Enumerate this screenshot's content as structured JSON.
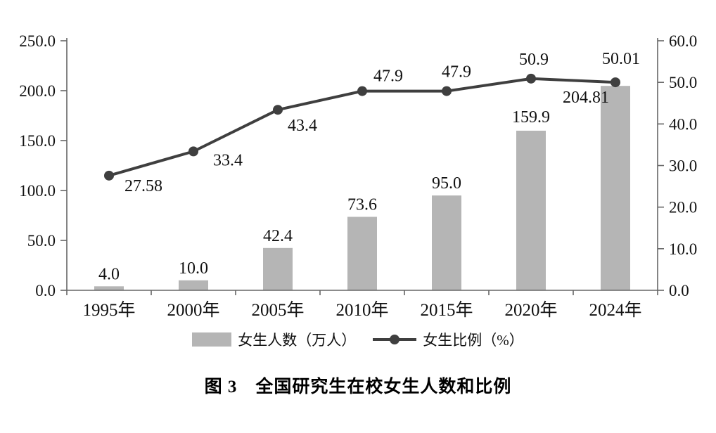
{
  "chart_data": {
    "type": "bar",
    "subtype": "combo-bar-line",
    "categories": [
      "1995年",
      "2000年",
      "2005年",
      "2010年",
      "2015年",
      "2020年",
      "2024年"
    ],
    "series": [
      {
        "name": "女生人数（万人）",
        "type": "bar",
        "axis": "left",
        "color": "#b5b5b5",
        "values": [
          4.0,
          10.0,
          42.4,
          73.6,
          95.0,
          159.9,
          204.81
        ],
        "labels": [
          "4.0",
          "10.0",
          "42.4",
          "73.6",
          "95.0",
          "159.9",
          "204.81"
        ]
      },
      {
        "name": "女生比例（%）",
        "type": "line",
        "axis": "right",
        "color": "#3f3f3f",
        "values": [
          27.58,
          33.4,
          43.4,
          47.9,
          47.9,
          50.9,
          50.01
        ],
        "labels": [
          "27.58",
          "33.4",
          "43.4",
          "47.9",
          "47.9",
          "50.9",
          "50.01"
        ]
      }
    ],
    "left_axis": {
      "min": 0,
      "max": 250,
      "step": 50,
      "tick_labels": [
        "0.0",
        "50.0",
        "100.0",
        "150.0",
        "200.0",
        "250.0"
      ]
    },
    "right_axis": {
      "min": 0,
      "max": 60,
      "step": 10,
      "tick_labels": [
        "0.0",
        "10.0",
        "20.0",
        "30.0",
        "40.0",
        "50.0",
        "60.0"
      ]
    },
    "legend_position": "bottom",
    "grid": false,
    "title": "",
    "xlabel": "",
    "ylabel": "",
    "caption": "图 3　全国研究生在校女生人数和比例"
  }
}
